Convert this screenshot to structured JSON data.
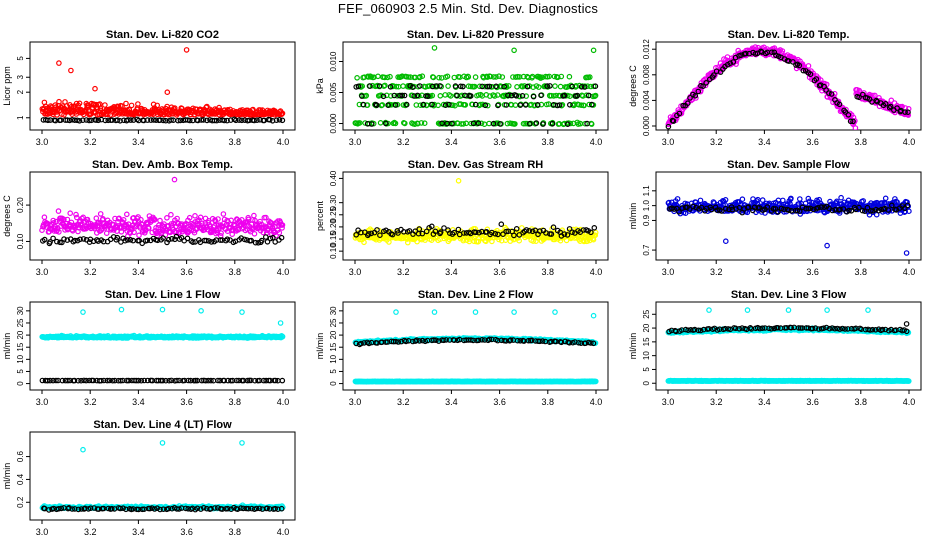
{
  "page": {
    "title": "FEF_060903  2.5 Min. Std. Dev. Diagnostics"
  },
  "chart_data": [
    {
      "type": "scatter",
      "title": "Stan. Dev. Li-820 CO2",
      "ylabel": "Licor ppm",
      "xlim": [
        3.0,
        4.0
      ],
      "ylim": [
        0.8,
        7.0
      ],
      "scale": "log",
      "xticks": [
        "3.0",
        "3.2",
        "3.4",
        "3.6",
        "3.8",
        "4.0"
      ],
      "yticks": [
        {
          "v": 1,
          "label": "1"
        },
        {
          "v": 2,
          "label": "2"
        },
        {
          "v": 3,
          "label": "3"
        },
        {
          "v": 5,
          "label": "5"
        }
      ],
      "series": [
        {
          "color": "#ff0000",
          "base": 1.08,
          "spread": 0.55,
          "outliers": [
            [
              3.07,
              4.4
            ],
            [
              3.12,
              3.6
            ],
            [
              3.22,
              2.2
            ],
            [
              3.6,
              6.3
            ],
            [
              3.52,
              2.0
            ]
          ],
          "decay": true
        },
        {
          "color": "#000000",
          "base": 0.93,
          "spread": 0.04
        }
      ]
    },
    {
      "type": "scatter",
      "title": "Stan. Dev. Li-820 Pressure",
      "ylabel": "kPa",
      "xlim": [
        3.0,
        4.0
      ],
      "ylim": [
        -0.0004,
        0.0125
      ],
      "xticks": [
        "3.0",
        "3.2",
        "3.4",
        "3.6",
        "3.8",
        "4.0"
      ],
      "yticks": [
        {
          "v": 0,
          "label": "0.000"
        },
        {
          "v": 0.005,
          "label": "0.005"
        },
        {
          "v": 0.01,
          "label": "0.010"
        }
      ],
      "series": [
        {
          "color": "#00bb00",
          "pattern": "levels",
          "levels": [
            0,
            0.003,
            0.0045,
            0.006,
            0.0075
          ],
          "outliers": [
            [
              3.33,
              0.0122
            ],
            [
              3.66,
              0.0118
            ],
            [
              3.99,
              0.0118
            ]
          ]
        },
        {
          "color": "#000000",
          "pattern": "levels",
          "levels": [
            0,
            0.003,
            0.0045,
            0.006
          ]
        }
      ]
    },
    {
      "type": "scatter",
      "title": "Stan. Dev. Li-820 Temp.",
      "ylabel": "degrees C",
      "xlim": [
        3.0,
        4.0
      ],
      "ylim": [
        0.0,
        0.0125
      ],
      "xticks": [
        "3.0",
        "3.2",
        "3.4",
        "3.6",
        "3.8",
        "4.0"
      ],
      "yticks": [
        {
          "v": 0,
          "label": "0.000"
        },
        {
          "v": 0.004,
          "label": "0.004"
        },
        {
          "v": 0.008,
          "label": "0.008"
        },
        {
          "v": 0.012,
          "label": "0.012"
        }
      ],
      "series": [
        {
          "color": "#ee00ee",
          "pattern": "arch",
          "amp": 0.0118,
          "spread": 0.0012
        },
        {
          "color": "#000000",
          "pattern": "arch",
          "amp": 0.0115,
          "spread": 0.0006
        }
      ]
    },
    {
      "type": "scatter",
      "title": "Stan. Dev. Amb. Box Temp.",
      "ylabel": "degrees C",
      "xlim": [
        3.0,
        4.0
      ],
      "ylim": [
        0.06,
        0.28
      ],
      "xticks": [
        "3.0",
        "3.2",
        "3.4",
        "3.6",
        "3.8",
        "4.0"
      ],
      "yticks": [
        {
          "v": 0.1,
          "label": "0.10"
        },
        {
          "v": 0.2,
          "label": "0.20"
        }
      ],
      "series": [
        {
          "color": "#ee00ee",
          "base": 0.13,
          "spread": 0.05,
          "outliers": [
            [
              3.55,
              0.27
            ]
          ]
        },
        {
          "color": "#000000",
          "base": 0.1,
          "spread": 0.02
        }
      ]
    },
    {
      "type": "scatter",
      "title": "Stan. Dev. Gas Stream RH",
      "ylabel": "percent",
      "xlim": [
        3.0,
        4.0
      ],
      "ylim": [
        0.08,
        0.41
      ],
      "xticks": [
        "3.0",
        "3.2",
        "3.4",
        "3.6",
        "3.8",
        "4.0"
      ],
      "yticks": [
        {
          "v": 0.1,
          "label": "0.10"
        },
        {
          "v": 0.15,
          "label": "0.15"
        },
        {
          "v": 0.2,
          "label": "0.20"
        },
        {
          "v": 0.25,
          "label": "0.25"
        },
        {
          "v": 0.3,
          "label": "0.30"
        },
        {
          "v": 0.4,
          "label": "0.40"
        }
      ],
      "series": [
        {
          "color": "#ffff00",
          "base": 0.15,
          "spread": 0.05,
          "outliers": [
            [
              3.43,
              0.39
            ]
          ]
        },
        {
          "color": "#000000",
          "base": 0.17,
          "spread": 0.05
        }
      ]
    },
    {
      "type": "scatter",
      "title": "Stan. Dev. Sample Flow",
      "ylabel": "ml/min",
      "xlim": [
        3.0,
        4.0
      ],
      "ylim": [
        0.66,
        1.2
      ],
      "xticks": [
        "3.0",
        "3.2",
        "3.4",
        "3.6",
        "3.8",
        "4.0"
      ],
      "yticks": [
        {
          "v": 0.7,
          "label": "0.7"
        },
        {
          "v": 0.9,
          "label": "0.9"
        },
        {
          "v": 1.0,
          "label": "1.0"
        },
        {
          "v": 1.1,
          "label": "1.1"
        }
      ],
      "series": [
        {
          "color": "#0000dd",
          "base": 0.97,
          "spread": 0.09,
          "outliers": [
            [
              3.99,
              0.68
            ],
            [
              3.66,
              0.73
            ],
            [
              3.24,
              0.76
            ]
          ]
        },
        {
          "color": "#000000",
          "base": 0.97,
          "spread": 0.05
        }
      ]
    },
    {
      "type": "scatter",
      "title": "Stan. Dev. Line 1 Flow",
      "ylabel": "ml/min",
      "xlim": [
        3.0,
        4.0
      ],
      "ylim": [
        -1,
        32
      ],
      "xticks": [
        "3.0",
        "3.2",
        "3.4",
        "3.6",
        "3.8",
        "4.0"
      ],
      "yticks": [
        {
          "v": 0,
          "label": "0"
        },
        {
          "v": 5,
          "label": "5"
        },
        {
          "v": 10,
          "label": "10"
        },
        {
          "v": 15,
          "label": "15"
        },
        {
          "v": 20,
          "label": "20"
        },
        {
          "v": 25,
          "label": "25"
        },
        {
          "v": 30,
          "label": "30"
        }
      ],
      "series": [
        {
          "color": "#00eeee",
          "base": 19,
          "spread": 0.8,
          "outliers": [
            [
              3.17,
              29.5
            ],
            [
              3.33,
              30.5
            ],
            [
              3.5,
              30.5
            ],
            [
              3.66,
              30
            ],
            [
              3.83,
              29.5
            ],
            [
              3.99,
              25
            ]
          ]
        },
        {
          "color": "#000000",
          "base": 1.2,
          "spread": 0.2
        }
      ]
    },
    {
      "type": "scatter",
      "title": "Stan. Dev. Line 2 Flow",
      "ylabel": "ml/min",
      "xlim": [
        3.0,
        4.0
      ],
      "ylim": [
        -1,
        32
      ],
      "xticks": [
        "3.0",
        "3.2",
        "3.4",
        "3.6",
        "3.8",
        "4.0"
      ],
      "yticks": [
        {
          "v": 0,
          "label": "0"
        },
        {
          "v": 5,
          "label": "5"
        },
        {
          "v": 10,
          "label": "10"
        },
        {
          "v": 15,
          "label": "15"
        },
        {
          "v": 20,
          "label": "20"
        },
        {
          "v": 25,
          "label": "25"
        },
        {
          "v": 30,
          "label": "30"
        }
      ],
      "series": [
        {
          "color": "#00eeee",
          "base": 0.8,
          "spread": 0.2,
          "outliers": [
            [
              3.17,
              29.5
            ],
            [
              3.33,
              29.5
            ],
            [
              3.5,
              29.5
            ],
            [
              3.66,
              29.5
            ],
            [
              3.83,
              29.5
            ],
            [
              3.99,
              28
            ]
          ]
        },
        {
          "color": "#00eeee",
          "pattern": "hump",
          "base": 17,
          "amp": 1.5,
          "spread": 0.6
        },
        {
          "color": "#000000",
          "pattern": "hump",
          "base": 16.5,
          "amp": 1.5,
          "spread": 0.5
        }
      ]
    },
    {
      "type": "scatter",
      "title": "Stan. Dev. Line 3 Flow",
      "ylabel": "ml/min",
      "xlim": [
        3.0,
        4.0
      ],
      "ylim": [
        -1,
        28
      ],
      "xticks": [
        "3.0",
        "3.2",
        "3.4",
        "3.6",
        "3.8",
        "4.0"
      ],
      "yticks": [
        {
          "v": 0,
          "label": "0"
        },
        {
          "v": 5,
          "label": "5"
        },
        {
          "v": 10,
          "label": "10"
        },
        {
          "v": 15,
          "label": "15"
        },
        {
          "v": 20,
          "label": "20"
        },
        {
          "v": 25,
          "label": "25"
        }
      ],
      "series": [
        {
          "color": "#00eeee",
          "base": 0.8,
          "spread": 0.2,
          "outliers": [
            [
              3.17,
              26.5
            ],
            [
              3.33,
              26.5
            ],
            [
              3.5,
              26.5
            ],
            [
              3.66,
              26.5
            ],
            [
              3.83,
              26.5
            ]
          ]
        },
        {
          "color": "#00eeee",
          "pattern": "hump",
          "base": 18.5,
          "amp": 1.0,
          "spread": 0.6
        },
        {
          "color": "#000000",
          "pattern": "hump",
          "base": 19,
          "amp": 1.0,
          "spread": 0.5,
          "outliers": [
            [
              3.99,
              21.5
            ]
          ]
        }
      ]
    },
    {
      "type": "scatter",
      "title": "Stan. Dev. Line 4 (LT) Flow",
      "ylabel": "ml/min",
      "xlim": [
        3.0,
        4.0
      ],
      "ylim": [
        0.08,
        0.78
      ],
      "xticks": [
        "3.0",
        "3.2",
        "3.4",
        "3.6",
        "3.8",
        "4.0"
      ],
      "yticks": [
        {
          "v": 0.2,
          "label": "0.2"
        },
        {
          "v": 0.4,
          "label": "0.4"
        },
        {
          "v": 0.6,
          "label": "0.6"
        }
      ],
      "series": [
        {
          "color": "#00eeee",
          "base": 0.15,
          "spread": 0.02,
          "outliers": [
            [
              3.17,
              0.66
            ],
            [
              3.5,
              0.72
            ],
            [
              3.83,
              0.72
            ]
          ]
        },
        {
          "color": "#000000",
          "base": 0.14,
          "spread": 0.02
        }
      ]
    }
  ]
}
